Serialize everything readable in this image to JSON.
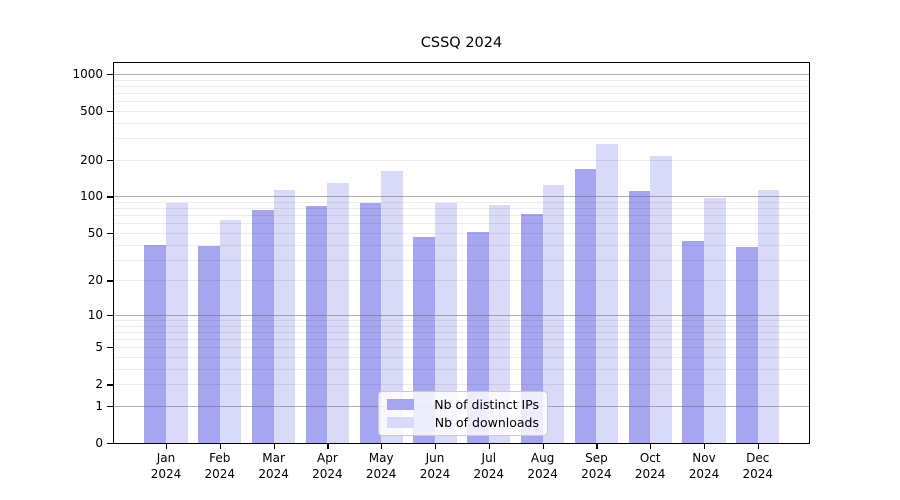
{
  "chart_data": {
    "type": "bar",
    "title": "CSSQ 2024",
    "categories": [
      "Jan",
      "Feb",
      "Mar",
      "Apr",
      "May",
      "Jun",
      "Jul",
      "Aug",
      "Sep",
      "Oct",
      "Nov",
      "Dec"
    ],
    "category_year": "2024",
    "series": [
      {
        "name": "Nb of distinct IPs",
        "key": "distinct-ips",
        "color": "#a5a5f0",
        "values": [
          40,
          39,
          78,
          84,
          88,
          46,
          51,
          72,
          168,
          111,
          43,
          38
        ]
      },
      {
        "name": "Nb of downloads",
        "key": "downloads",
        "color": "#d9d9f8",
        "values": [
          88,
          64,
          112,
          128,
          161,
          88,
          85,
          125,
          270,
          216,
          98,
          112
        ]
      }
    ],
    "xlabel": "",
    "ylabel": "",
    "yscale": "log1p",
    "ylim": [
      0,
      1230
    ],
    "ytick_values": [
      1000,
      500,
      200,
      100,
      50,
      20,
      10,
      5,
      2,
      1,
      0
    ],
    "ytick_labels": [
      "1000",
      "500",
      "200",
      "100",
      "50",
      "20",
      "10",
      "5",
      "2",
      "1",
      "0"
    ],
    "grid": true,
    "grid_major_values": [
      1,
      10,
      100,
      1000
    ],
    "legend_position": "bottom-center",
    "colors": {
      "background": "#ffffff",
      "axis": "#000000",
      "text": "#000000",
      "grid_major": "#6e6e6e",
      "grid_minor": "#ebebeb",
      "legend_border": "#cccccc"
    }
  }
}
